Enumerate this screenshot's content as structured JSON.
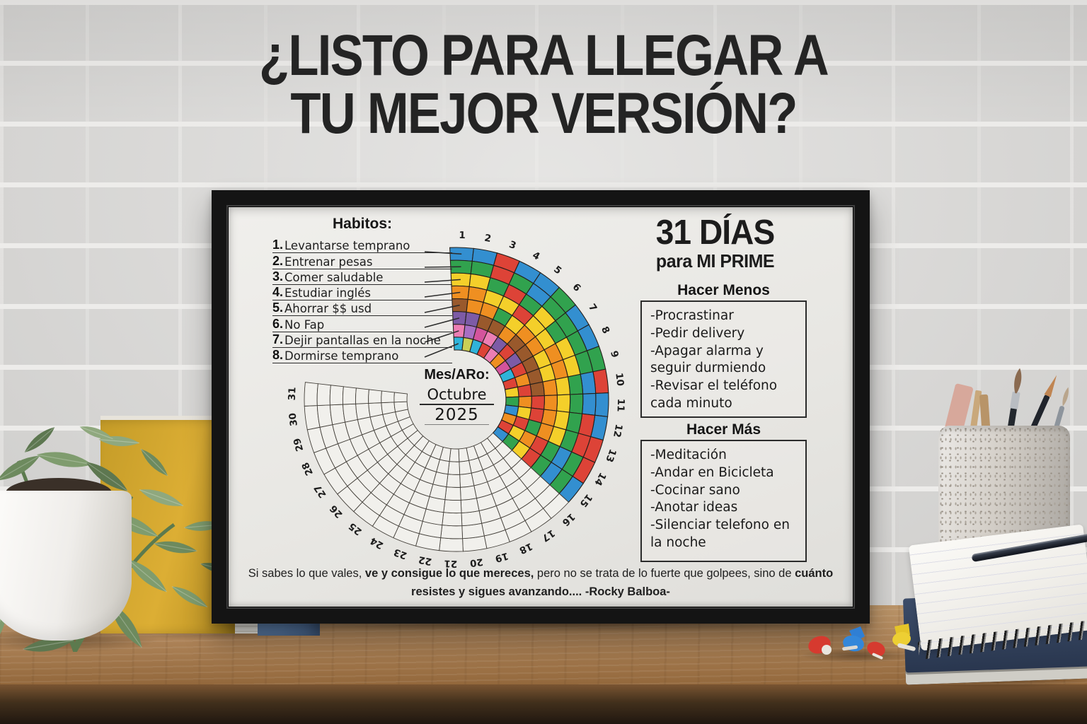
{
  "wall_title": {
    "line1": "¿LISTO PARA LLEGAR A",
    "line2": "TU MEJOR VERSIÓN?"
  },
  "poster": {
    "habits_title": "Habitos:",
    "habits": [
      {
        "num": "1.",
        "label": "Levantarse temprano"
      },
      {
        "num": "2.",
        "label": "Entrenar pesas"
      },
      {
        "num": "3.",
        "label": "Comer saludable"
      },
      {
        "num": "4.",
        "label": "Estudiar inglés"
      },
      {
        "num": "5.",
        "label": "Ahorrar $$ usd"
      },
      {
        "num": "6.",
        "label": "No Fap"
      },
      {
        "num": "7.",
        "label": "Dejir pantallas en la noche"
      },
      {
        "num": "8.",
        "label": "Dormirse temprano"
      }
    ],
    "month_block": {
      "label": "Mes/ARo:",
      "month": "Octubre",
      "year": "2025"
    },
    "headline": {
      "big": "31 DÍAS",
      "sub": "para MI PRIME"
    },
    "do_less": {
      "title": "Hacer Menos",
      "items": [
        "-Procrastinar",
        "-Pedir delivery",
        "-Apagar alarma y seguir durmiendo",
        "-Revisar el teléfono cada minuto"
      ]
    },
    "do_more": {
      "title": "Hacer Más",
      "items": [
        "-Meditación",
        "-Andar en Bicicleta",
        "-Cocinar sano",
        "-Anotar ideas",
        "-Silenciar telefono en la noche"
      ]
    },
    "quote": {
      "part1": "Si sabes lo que vales, ",
      "bold1": "ve y consigue lo que mereces,",
      "part2": " pero no se trata de lo fuerte que golpees, sino de ",
      "bold2": "cuánto resistes y sigues avanzando.... -Rocky Balboa-"
    }
  },
  "chart_data": {
    "type": "radial-habit-tracker",
    "title": "31 DÍAS para MI PRIME — Octubre 2025",
    "days_total": 31,
    "days_filled": 15,
    "rings": 8,
    "ring_habits": [
      "Levantarse temprano",
      "Entrenar pesas",
      "Comer saludable",
      "Estudiar inglés",
      "Ahorrar $$ usd",
      "No Fap",
      "Dejir pantallas en la noche",
      "Dormirse temprano"
    ],
    "day_labels": [
      1,
      2,
      3,
      4,
      5,
      6,
      7,
      8,
      9,
      10,
      11,
      12,
      13,
      14,
      15,
      16,
      17,
      18,
      19,
      20,
      21,
      22,
      23,
      24,
      25,
      26,
      27,
      28,
      29,
      30,
      31
    ],
    "palette": {
      "blue": "#338fd0",
      "green": "#31a24e",
      "yellow": "#f4cf2a",
      "orange": "#ef8f21",
      "brown": "#99592c",
      "purple": "#7d5ba6",
      "pink": "#ec7eb4",
      "magenta": "#d4549c",
      "red": "#dd4337",
      "cyan": "#2fb3d9",
      "violet": "#a86fc3",
      "olive": "#c9cf56"
    },
    "empty_cell_color": "#f1f0ec",
    "cells": [
      [
        "blue",
        "green",
        "yellow",
        "orange",
        "brown",
        "purple",
        "pink",
        "cyan"
      ],
      [
        "blue",
        "green",
        "yellow",
        "orange",
        "orange",
        "purple",
        "violet",
        "olive"
      ],
      [
        "red",
        "red",
        "green",
        "yellow",
        "orange",
        "brown",
        "magenta",
        "cyan"
      ],
      [
        "blue",
        "green",
        "red",
        "yellow",
        "green",
        "brown",
        "pink",
        "red"
      ],
      [
        "blue",
        "blue",
        "green",
        "red",
        "yellow",
        "orange",
        "purple",
        "pink"
      ],
      [
        "green",
        "green",
        "yellow",
        "yellow",
        "orange",
        "brown",
        "red",
        "orange"
      ],
      [
        "blue",
        "green",
        "green",
        "yellow",
        "orange",
        "brown",
        "purple",
        "magenta"
      ],
      [
        "blue",
        "green",
        "yellow",
        "orange",
        "yellow",
        "brown",
        "red",
        "cyan"
      ],
      [
        "green",
        "green",
        "yellow",
        "orange",
        "yellow",
        "brown",
        "orange",
        "red"
      ],
      [
        "red",
        "blue",
        "green",
        "yellow",
        "orange",
        "brown",
        "red",
        "yellow"
      ],
      [
        "blue",
        "blue",
        "green",
        "yellow",
        "orange",
        "red",
        "orange",
        "green"
      ],
      [
        "blue",
        "red",
        "green",
        "yellow",
        "orange",
        "red",
        "yellow",
        "blue"
      ],
      [
        "red",
        "red",
        "green",
        "yellow",
        "orange",
        "green",
        "red",
        "orange"
      ],
      [
        "red",
        "green",
        "blue",
        "green",
        "red",
        "orange",
        "yellow",
        "red"
      ],
      [
        "blue",
        "green",
        "blue",
        "green",
        "red",
        "yellow",
        "green",
        "blue"
      ]
    ]
  }
}
